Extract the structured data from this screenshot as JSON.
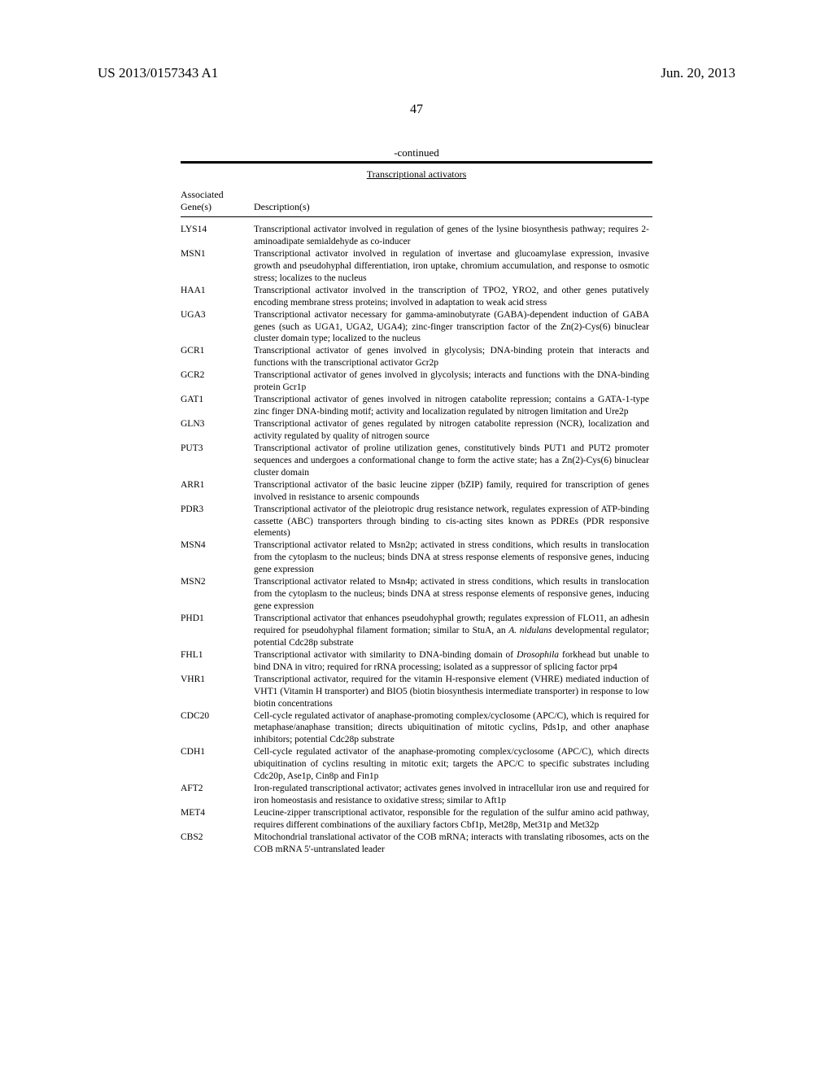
{
  "header": {
    "doc_number": "US 2013/0157343 A1",
    "date": "Jun. 20, 2013"
  },
  "page_number": "47",
  "continued_label": "-continued",
  "table": {
    "title": "Transcriptional activators",
    "col1_header_line1": "Associated",
    "col1_header_line2": "Gene(s)",
    "col2_header": "Description(s)",
    "rows": [
      {
        "gene": "LYS14",
        "desc": "Transcriptional activator involved in regulation of genes of the lysine biosynthesis pathway; requires 2-aminoadipate semialdehyde as co-inducer"
      },
      {
        "gene": "MSN1",
        "desc": "Transcriptional activator involved in regulation of invertase and glucoamylase expression, invasive growth and pseudohyphal differentiation, iron uptake, chromium accumulation, and response to osmotic stress; localizes to the nucleus"
      },
      {
        "gene": "HAA1",
        "desc": "Transcriptional activator involved in the transcription of TPO2, YRO2, and other genes putatively encoding membrane stress proteins; involved in adaptation to weak acid stress"
      },
      {
        "gene": "UGA3",
        "desc": "Transcriptional activator necessary for gamma-aminobutyrate (GABA)-dependent induction of GABA genes (such as UGA1, UGA2, UGA4); zinc-finger transcription factor of the Zn(2)-Cys(6) binuclear cluster domain type; localized to the nucleus"
      },
      {
        "gene": "GCR1",
        "desc": "Transcriptional activator of genes involved in glycolysis; DNA-binding protein that interacts and functions with the transcriptional activator Gcr2p"
      },
      {
        "gene": "GCR2",
        "desc": "Transcriptional activator of genes involved in glycolysis; interacts and functions with the DNA-binding protein Gcr1p"
      },
      {
        "gene": "GAT1",
        "desc": "Transcriptional activator of genes involved in nitrogen catabolite repression; contains a GATA-1-type zinc finger DNA-binding motif; activity and localization regulated by nitrogen limitation and Ure2p"
      },
      {
        "gene": "GLN3",
        "desc": "Transcriptional activator of genes regulated by nitrogen catabolite repression (NCR), localization and activity regulated by quality of nitrogen source"
      },
      {
        "gene": "PUT3",
        "desc": "Transcriptional activator of proline utilization genes, constitutively binds PUT1 and PUT2 promoter sequences and undergoes a conformational change to form the active state; has a Zn(2)-Cys(6) binuclear cluster domain"
      },
      {
        "gene": "ARR1",
        "desc": "Transcriptional activator of the basic leucine zipper (bZIP) family, required for transcription of genes involved in resistance to arsenic compounds"
      },
      {
        "gene": "PDR3",
        "desc": "Transcriptional activator of the pleiotropic drug resistance network, regulates expression of ATP-binding cassette (ABC) transporters through binding to cis-acting sites known as PDREs (PDR responsive elements)"
      },
      {
        "gene": "MSN4",
        "desc": "Transcriptional activator related to Msn2p; activated in stress conditions, which results in translocation from the cytoplasm to the nucleus; binds DNA at stress response elements of responsive genes, inducing gene expression"
      },
      {
        "gene": "MSN2",
        "desc": "Transcriptional activator related to Msn4p; activated in stress conditions, which results in translocation from the cytoplasm to the nucleus; binds DNA at stress response elements of responsive genes, inducing gene expression"
      },
      {
        "gene": "PHD1",
        "desc_html": "Transcriptional activator that enhances pseudohyphal growth; regulates expression of FLO11, an adhesin required for pseudohyphal filament formation; similar to StuA, an <span class=\"italic\">A. nidulans</span> developmental regulator; potential Cdc28p substrate"
      },
      {
        "gene": "FHL1",
        "desc_html": "Transcriptional activator with similarity to DNA-binding domain of <span class=\"italic\">Drosophila</span> forkhead but unable to bind DNA in vitro; required for rRNA processing; isolated as a suppressor of splicing factor prp4"
      },
      {
        "gene": "VHR1",
        "desc": "Transcriptional activator, required for the vitamin H-responsive element (VHRE) mediated induction of VHT1 (Vitamin H transporter) and BIO5 (biotin biosynthesis intermediate transporter) in response to low biotin concentrations"
      },
      {
        "gene": "CDC20",
        "desc": "Cell-cycle regulated activator of anaphase-promoting complex/cyclosome (APC/C), which is required for metaphase/anaphase transition; directs ubiquitination of mitotic cyclins, Pds1p, and other anaphase inhibitors; potential Cdc28p substrate"
      },
      {
        "gene": "CDH1",
        "desc": "Cell-cycle regulated activator of the anaphase-promoting complex/cyclosome (APC/C), which directs ubiquitination of cyclins resulting in mitotic exit; targets the APC/C to specific substrates including Cdc20p, Ase1p, Cin8p and Fin1p"
      },
      {
        "gene": "AFT2",
        "desc": "Iron-regulated transcriptional activator; activates genes involved in intracellular iron use and required for iron homeostasis and resistance to oxidative stress; similar to Aft1p"
      },
      {
        "gene": "MET4",
        "desc": "Leucine-zipper transcriptional activator, responsible for the regulation of the sulfur amino acid pathway, requires different combinations of the auxiliary factors Cbf1p, Met28p, Met31p and Met32p"
      },
      {
        "gene": "CBS2",
        "desc": "Mitochondrial translational activator of the COB mRNA; interacts with translating ribosomes, acts on the COB mRNA 5'-untranslated leader"
      }
    ]
  }
}
